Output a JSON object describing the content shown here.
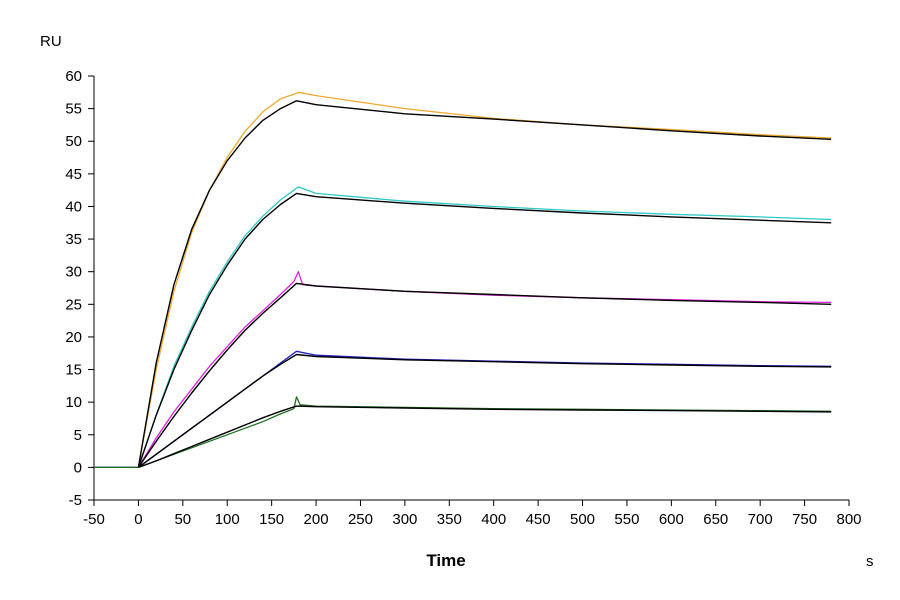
{
  "chart_data": {
    "type": "line",
    "title": "",
    "xlabel": "Time",
    "xunit": "s",
    "ylabel": "RU",
    "xlim": [
      -50,
      800
    ],
    "ylim": [
      -5,
      60
    ],
    "xticks": [
      -50,
      0,
      50,
      100,
      150,
      200,
      250,
      300,
      350,
      400,
      450,
      500,
      550,
      600,
      650,
      700,
      750,
      800
    ],
    "yticks": [
      -5,
      0,
      5,
      10,
      15,
      20,
      25,
      30,
      35,
      40,
      45,
      50,
      55,
      60
    ],
    "grid": false,
    "legend": "none",
    "series": [
      {
        "color": "#f0a830",
        "x": [
          -50,
          -5,
          0,
          20,
          40,
          60,
          80,
          100,
          120,
          140,
          160,
          175,
          180,
          200,
          250,
          300,
          400,
          500,
          600,
          700,
          780
        ],
        "y": [
          0,
          0,
          0,
          15,
          27,
          36,
          42.5,
          47.5,
          51.5,
          54.5,
          56.5,
          57.2,
          57.5,
          57,
          56,
          55,
          53.5,
          52.5,
          51.8,
          51,
          50.5
        ]
      },
      {
        "color": "#000000",
        "x": [
          0,
          20,
          40,
          60,
          80,
          100,
          120,
          140,
          160,
          178,
          200,
          300,
          400,
          500,
          600,
          700,
          780
        ],
        "y": [
          0,
          16,
          28,
          36.5,
          42.5,
          47,
          50.5,
          53.2,
          55,
          56.2,
          55.6,
          54.2,
          53.4,
          52.5,
          51.6,
          50.8,
          50.3
        ]
      },
      {
        "color": "#30c8c8",
        "x": [
          -50,
          0,
          20,
          40,
          60,
          80,
          100,
          120,
          140,
          160,
          175,
          180,
          200,
          300,
          400,
          500,
          600,
          700,
          780
        ],
        "y": [
          0,
          0,
          8,
          15.5,
          21.5,
          27,
          31.5,
          35.5,
          38.5,
          41,
          42.5,
          43,
          42,
          40.8,
          40,
          39.3,
          38.8,
          38.4,
          38
        ]
      },
      {
        "color": "#000000",
        "x": [
          0,
          20,
          40,
          60,
          80,
          100,
          120,
          140,
          160,
          178,
          200,
          300,
          400,
          500,
          600,
          700,
          780
        ],
        "y": [
          0,
          8,
          15,
          21,
          26.5,
          31,
          35,
          38,
          40.3,
          42,
          41.5,
          40.5,
          39.7,
          39,
          38.4,
          37.9,
          37.5
        ]
      },
      {
        "color": "#e020e0",
        "x": [
          -50,
          0,
          20,
          40,
          60,
          80,
          100,
          120,
          140,
          160,
          175,
          180,
          185,
          200,
          300,
          400,
          500,
          600,
          700,
          780
        ],
        "y": [
          0,
          0,
          4.5,
          8.5,
          12,
          15.5,
          18.5,
          21.5,
          24,
          26.5,
          28.5,
          30,
          28,
          27.8,
          27,
          26.4,
          26,
          25.7,
          25.4,
          25.3
        ]
      },
      {
        "color": "#000000",
        "x": [
          0,
          20,
          40,
          60,
          80,
          100,
          120,
          140,
          160,
          178,
          200,
          300,
          400,
          500,
          600,
          700,
          780
        ],
        "y": [
          0,
          4,
          7.8,
          11.4,
          14.8,
          18,
          21,
          23.6,
          26,
          28.2,
          27.8,
          27,
          26.5,
          26,
          25.6,
          25.3,
          25
        ]
      },
      {
        "color": "#2020c0",
        "x": [
          -50,
          0,
          20,
          40,
          60,
          80,
          100,
          120,
          140,
          160,
          178,
          200,
          300,
          400,
          500,
          600,
          700,
          780
        ],
        "y": [
          0,
          0,
          2,
          4,
          6,
          8,
          10,
          12,
          14,
          16,
          17.8,
          17.2,
          16.6,
          16.3,
          16,
          15.8,
          15.6,
          15.5
        ]
      },
      {
        "color": "#000000",
        "x": [
          0,
          20,
          40,
          60,
          80,
          100,
          120,
          140,
          160,
          178,
          200,
          300,
          400,
          500,
          600,
          700,
          780
        ],
        "y": [
          0,
          2,
          4,
          6,
          8,
          10,
          12,
          14,
          15.8,
          17.3,
          17,
          16.5,
          16.2,
          15.9,
          15.7,
          15.5,
          15.4
        ]
      },
      {
        "color": "#207020",
        "x": [
          -50,
          0,
          20,
          40,
          60,
          80,
          100,
          120,
          140,
          160,
          175,
          178,
          182,
          200,
          300,
          400,
          500,
          600,
          700,
          780
        ],
        "y": [
          0,
          0,
          1,
          2,
          3,
          4,
          5,
          6,
          7,
          8.2,
          9,
          10.8,
          9.6,
          9.4,
          9.2,
          9,
          8.9,
          8.8,
          8.7,
          8.6
        ]
      },
      {
        "color": "#000000",
        "x": [
          0,
          20,
          40,
          60,
          80,
          100,
          120,
          140,
          160,
          178,
          200,
          300,
          400,
          500,
          600,
          700,
          780
        ],
        "y": [
          0,
          1,
          2.1,
          3.2,
          4.3,
          5.4,
          6.5,
          7.6,
          8.6,
          9.4,
          9.3,
          9.1,
          8.9,
          8.8,
          8.7,
          8.6,
          8.5
        ]
      }
    ]
  }
}
